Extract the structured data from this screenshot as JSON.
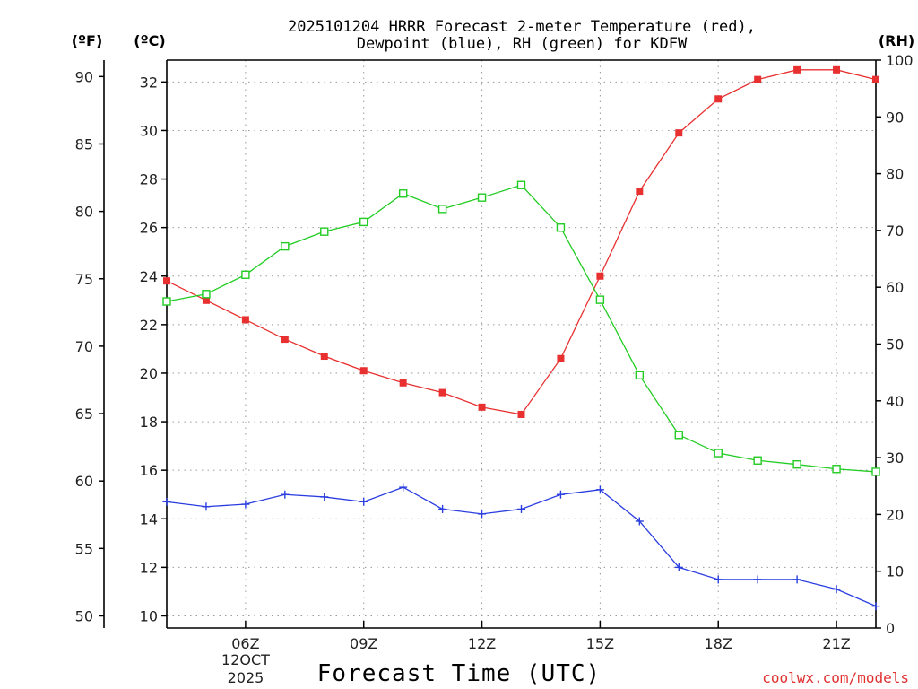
{
  "chart_data": {
    "type": "line",
    "title_line1": "2025101204 HRRR Forecast 2-meter Temperature (red),",
    "title_line2": "Dewpoint (blue), RH (green) for KDFW",
    "xlabel": "Forecast Time (UTC)",
    "credit": "coolwx.com/models",
    "unit_f": "(ºF)",
    "unit_c": "(ºC)",
    "unit_rh": "(RH)",
    "x": [
      4,
      5,
      6,
      7,
      8,
      9,
      10,
      11,
      12,
      13,
      14,
      15,
      16,
      17,
      18,
      19,
      20,
      21,
      22
    ],
    "xlim": [
      4,
      22
    ],
    "x_ticks": [
      {
        "x": 6,
        "label": "06Z"
      },
      {
        "x": 9,
        "label": "09Z"
      },
      {
        "x": 12,
        "label": "12Z"
      },
      {
        "x": 15,
        "label": "15Z"
      },
      {
        "x": 18,
        "label": "18Z"
      },
      {
        "x": 21,
        "label": "21Z"
      }
    ],
    "date_label_line1": "12OCT",
    "date_label_line2": "2025",
    "c_ylim": [
      9.5,
      32.9
    ],
    "c_ticks": [
      10,
      12,
      14,
      16,
      18,
      20,
      22,
      24,
      26,
      28,
      30,
      32
    ],
    "f_ticks": [
      50,
      55,
      60,
      65,
      70,
      75,
      80,
      85,
      90
    ],
    "rh_ylim": [
      0,
      100
    ],
    "rh_ticks": [
      0,
      10,
      20,
      30,
      40,
      50,
      60,
      70,
      80,
      90,
      100
    ],
    "series": [
      {
        "name": "Temperature",
        "color": "#e83030",
        "marker": "filled-square",
        "axis": "c",
        "values": [
          23.8,
          23.0,
          22.2,
          21.4,
          20.7,
          20.1,
          19.6,
          19.2,
          18.6,
          18.3,
          20.6,
          24.0,
          27.5,
          29.9,
          31.3,
          32.1,
          32.5,
          32.5,
          32.1
        ]
      },
      {
        "name": "Dewpoint",
        "color": "#2a3ee0",
        "marker": "plus",
        "axis": "c",
        "values": [
          14.7,
          14.5,
          14.6,
          15.0,
          14.9,
          14.7,
          15.3,
          14.4,
          14.2,
          14.4,
          15.0,
          15.2,
          13.9,
          12.0,
          11.5,
          11.5,
          11.5,
          11.1,
          10.4
        ]
      },
      {
        "name": "RH",
        "color": "#22cc22",
        "marker": "open-square",
        "axis": "rh",
        "values": [
          57.5,
          58.8,
          62.2,
          67.2,
          69.8,
          71.5,
          76.5,
          73.8,
          75.8,
          78.0,
          70.5,
          57.8,
          44.5,
          34.0,
          30.8,
          29.5,
          28.8,
          28.0,
          27.5
        ]
      }
    ]
  }
}
